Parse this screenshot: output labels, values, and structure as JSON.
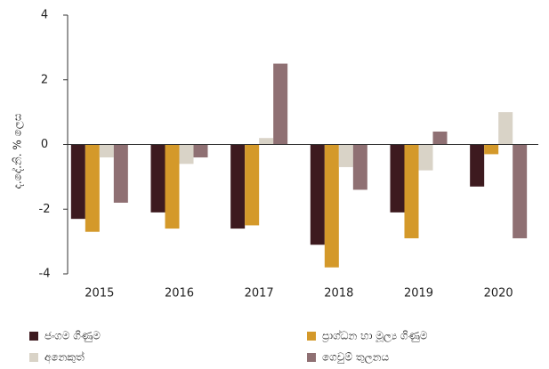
{
  "chart_data": {
    "type": "bar",
    "y_label": "ද.දේ.නි. % ලෙස",
    "categories": [
      "2015",
      "2016",
      "2017",
      "2018",
      "2019",
      "2020"
    ],
    "series": [
      {
        "name": "ජංගම ගිණුම",
        "color": "#3d1a1f",
        "values": [
          -2.3,
          -2.1,
          -2.6,
          -3.1,
          -2.1,
          -1.3
        ]
      },
      {
        "name": "ප්‍රාග්ධන හා මූල්‍ය ගිණුම",
        "color": "#d4992a",
        "values": [
          -2.7,
          -2.6,
          -2.5,
          -3.8,
          -2.9,
          -0.3
        ]
      },
      {
        "name": "අනෙකුත්",
        "color": "#d9d3c7",
        "values": [
          -0.4,
          -0.6,
          0.2,
          -0.7,
          -0.8,
          1.0
        ]
      },
      {
        "name": "ගෙවුම් තුලනය",
        "color": "#8f7073",
        "values": [
          -1.8,
          -0.4,
          2.5,
          -1.4,
          0.4,
          -2.9
        ]
      }
    ],
    "ylim": [
      -4,
      4
    ],
    "yticks": [
      -4,
      -2,
      0,
      2,
      4
    ],
    "grid": false
  }
}
